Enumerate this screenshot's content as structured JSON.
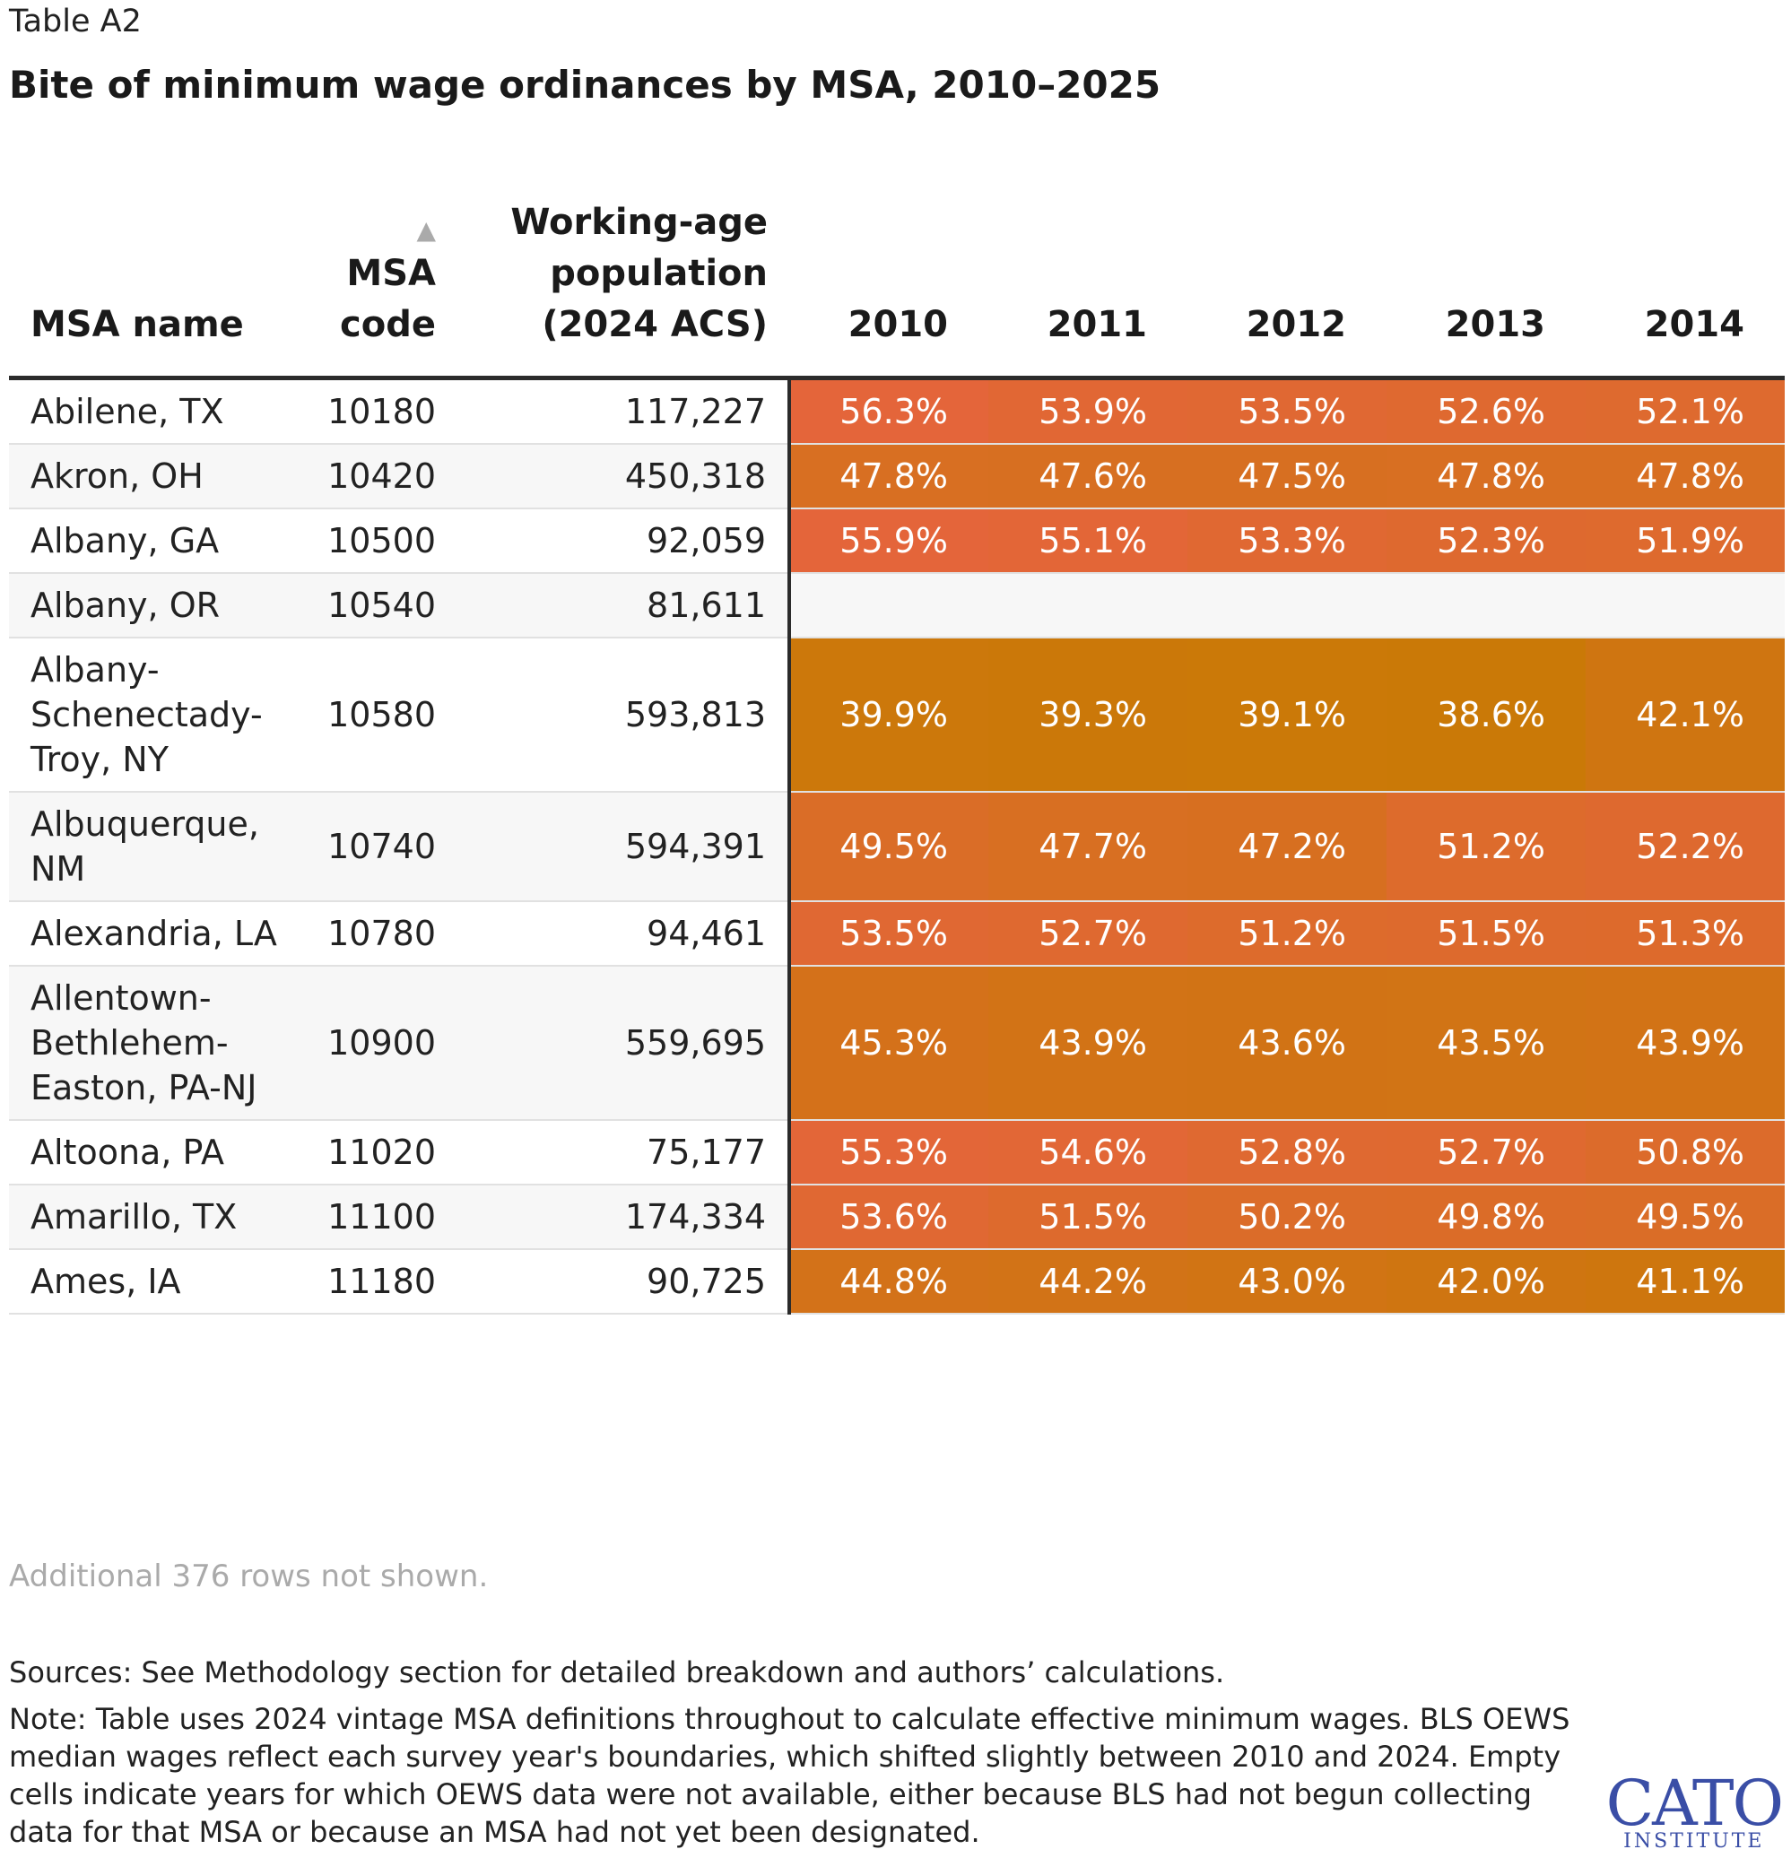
{
  "label": "Table A2",
  "title": "Bite of minimum wage ordinances by MSA, 2010–2025",
  "columns": {
    "name": "MSA name",
    "code_line1": "MSA",
    "code_line2": "code",
    "pop_line1": "Working-age",
    "pop_line2": "population",
    "pop_line3": "(2024 ACS)",
    "years": [
      "2010",
      "2011",
      "2012",
      "2013",
      "2014"
    ]
  },
  "colors": {
    "high": "#e4653a",
    "low": "#c97a05",
    "empty": "#f7f7f7",
    "text": "#ffffff"
  },
  "chart_data": {
    "type": "table",
    "columns": [
      "MSA name",
      "MSA code",
      "Working-age population (2024 ACS)",
      "2010",
      "2011",
      "2012",
      "2013",
      "2014"
    ],
    "rows": [
      {
        "name": "Abilene, TX",
        "code": "10180",
        "pop": "117,227",
        "values": [
          "56.3%",
          "53.9%",
          "53.5%",
          "52.6%",
          "52.1%"
        ]
      },
      {
        "name": "Akron, OH",
        "code": "10420",
        "pop": "450,318",
        "values": [
          "47.8%",
          "47.6%",
          "47.5%",
          "47.8%",
          "47.8%"
        ]
      },
      {
        "name": "Albany, GA",
        "code": "10500",
        "pop": "92,059",
        "values": [
          "55.9%",
          "55.1%",
          "53.3%",
          "52.3%",
          "51.9%"
        ]
      },
      {
        "name": "Albany, OR",
        "code": "10540",
        "pop": "81,611",
        "values": [
          "",
          "",
          "",
          "",
          ""
        ]
      },
      {
        "name": "Albany-Schenectady-Troy, NY",
        "code": "10580",
        "pop": "593,813",
        "values": [
          "39.9%",
          "39.3%",
          "39.1%",
          "38.6%",
          "42.1%"
        ]
      },
      {
        "name": "Albuquerque, NM",
        "code": "10740",
        "pop": "594,391",
        "values": [
          "49.5%",
          "47.7%",
          "47.2%",
          "51.2%",
          "52.2%"
        ]
      },
      {
        "name": "Alexandria, LA",
        "code": "10780",
        "pop": "94,461",
        "values": [
          "53.5%",
          "52.7%",
          "51.2%",
          "51.5%",
          "51.3%"
        ]
      },
      {
        "name": "Allentown-Bethlehem-Easton, PA-NJ",
        "code": "10900",
        "pop": "559,695",
        "values": [
          "45.3%",
          "43.9%",
          "43.6%",
          "43.5%",
          "43.9%"
        ]
      },
      {
        "name": "Altoona, PA",
        "code": "11020",
        "pop": "75,177",
        "values": [
          "55.3%",
          "54.6%",
          "52.8%",
          "52.7%",
          "50.8%"
        ]
      },
      {
        "name": "Amarillo, TX",
        "code": "11100",
        "pop": "174,334",
        "values": [
          "53.6%",
          "51.5%",
          "50.2%",
          "49.8%",
          "49.5%"
        ]
      },
      {
        "name": "Ames, IA",
        "code": "11180",
        "pop": "90,725",
        "values": [
          "44.8%",
          "44.2%",
          "43.0%",
          "42.0%",
          "41.1%"
        ]
      }
    ]
  },
  "more_rows": "Additional 376 rows not shown.",
  "sources": "Sources: See Methodology section for detailed breakdown and authors’ calculations.",
  "note": "Note: Table uses 2024 vintage MSA definitions throughout to calculate effective minimum wages. BLS OEWS median wages reflect each survey year's boundaries, which shifted slightly between 2010 and 2024. Empty cells indicate years for which OEWS data were not available, either because BLS had not begun collecting data for that MSA or because an MSA had not yet been designated.",
  "logo": {
    "line1": "CATO",
    "line2": "INSTITUTE"
  }
}
